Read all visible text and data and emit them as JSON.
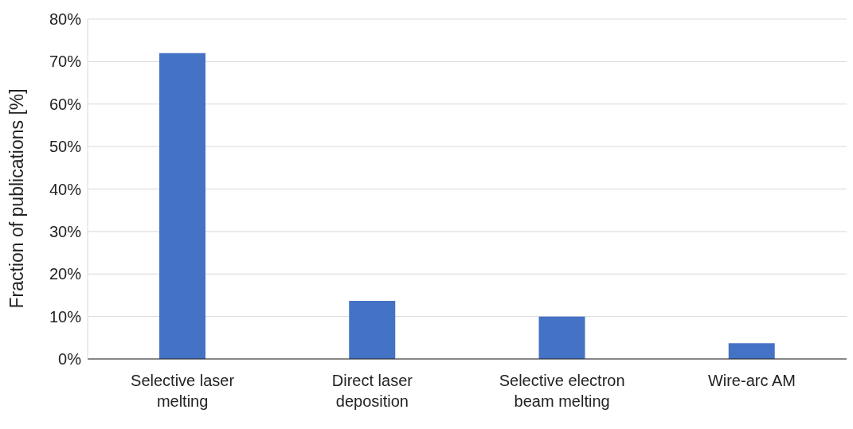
{
  "chart_data": {
    "type": "bar",
    "ylabel": "Fraction of publications [%]",
    "categories": [
      "Selective laser melting",
      "Direct laser deposition",
      "Selective electron beam melting",
      "Wire-arc AM"
    ],
    "values": [
      72,
      13.7,
      10,
      3.7
    ],
    "color": "#4472c4",
    "ylim": [
      0,
      80
    ],
    "yticks": [
      {
        "value": 0,
        "label": "0%"
      },
      {
        "value": 10,
        "label": "10%"
      },
      {
        "value": 20,
        "label": "20%"
      },
      {
        "value": 30,
        "label": "30%"
      },
      {
        "value": 40,
        "label": "40%"
      },
      {
        "value": 50,
        "label": "50%"
      },
      {
        "value": 60,
        "label": "60%"
      },
      {
        "value": 70,
        "label": "70%"
      },
      {
        "value": 80,
        "label": "80%"
      }
    ],
    "grid": "y"
  }
}
